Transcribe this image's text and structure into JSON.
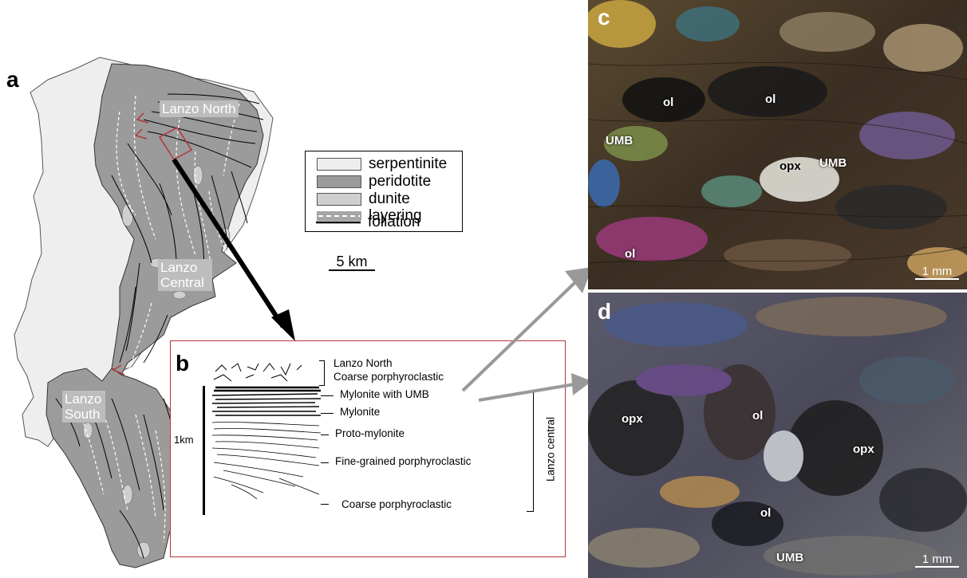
{
  "panel_a": {
    "letter": "a",
    "labels": {
      "north": "Lanzo North",
      "central": "Lanzo Central",
      "south": "Lanzo South"
    },
    "legend": [
      {
        "label": "serpentinite",
        "color": "#eeeeee"
      },
      {
        "label": "peridotite",
        "color": "#9b9b9b"
      },
      {
        "label": "dunite",
        "color": "#cfcfcf"
      },
      {
        "label": "layering",
        "color": "#a5a5a5"
      },
      {
        "label": "foliation",
        "color": "#000000"
      }
    ],
    "scale_bar": "5 km",
    "colors": {
      "serpentinite": "#eeeeee",
      "peridotite": "#9b9b9b",
      "dunite": "#cfcfcf",
      "inset_box": "#b3353a"
    }
  },
  "panel_b": {
    "letter": "b",
    "scale_label": "1km",
    "zones": [
      {
        "label": "Lanzo North\nCoarse porphyroclastic"
      },
      {
        "label": "Mylonite with UMB"
      },
      {
        "label": "Mylonite"
      },
      {
        "label": "Proto-mylonite"
      },
      {
        "label": "Fine-grained porphyroclastic"
      },
      {
        "label": "Coarse porphyroclastic"
      }
    ],
    "group_label": "Lanzo central"
  },
  "panel_c": {
    "letter": "c",
    "labels": [
      {
        "text": "ol"
      },
      {
        "text": "ol"
      },
      {
        "text": "UMB"
      },
      {
        "text": "opx"
      },
      {
        "text": "UMB"
      },
      {
        "text": "ol"
      }
    ],
    "scale_bar": "1 mm"
  },
  "panel_d": {
    "letter": "d",
    "labels": [
      {
        "text": "opx"
      },
      {
        "text": "ol"
      },
      {
        "text": "opx"
      },
      {
        "text": "ol"
      },
      {
        "text": "UMB"
      }
    ],
    "scale_bar": "1 mm"
  }
}
